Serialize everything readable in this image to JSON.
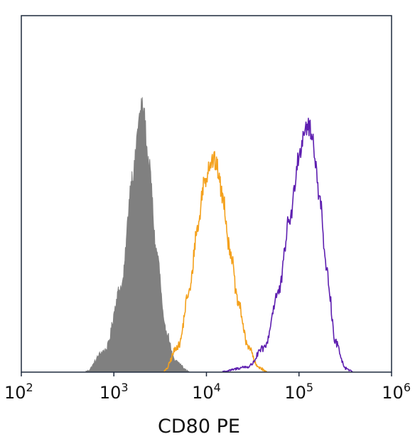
{
  "chart_data": {
    "type": "line",
    "title": "",
    "xlabel": "CD80 PE",
    "ylabel": "",
    "x_scale": "log",
    "xlim": [
      100,
      1000000
    ],
    "x_ticks": [
      {
        "base": "10",
        "exp": "2"
      },
      {
        "base": "10",
        "exp": "3"
      },
      {
        "base": "10",
        "exp": "4"
      },
      {
        "base": "10",
        "exp": "5"
      },
      {
        "base": "10",
        "exp": "6"
      }
    ],
    "ylim": [
      0,
      1.0
    ],
    "grid": false,
    "legend": "none",
    "series": [
      {
        "style": "filled",
        "color": "#808080",
        "x": [
          500,
          800,
          1200,
          1600,
          1900,
          2000,
          2100,
          2400,
          2900,
          3600,
          4600,
          6500
        ],
        "y": [
          0.003,
          0.08,
          0.32,
          0.74,
          0.96,
          1.0,
          0.97,
          0.77,
          0.45,
          0.16,
          0.04,
          0.003
        ]
      },
      {
        "style": "outline",
        "color": "#F4A11D",
        "x": [
          3500,
          5000,
          6500,
          8000,
          9500,
          11000,
          12000,
          13000,
          15000,
          18000,
          22000,
          28000,
          36000,
          45000
        ],
        "y": [
          0.005,
          0.1,
          0.3,
          0.54,
          0.72,
          0.79,
          0.8,
          0.77,
          0.66,
          0.46,
          0.26,
          0.1,
          0.02,
          0.002
        ]
      },
      {
        "style": "outline",
        "color": "#5E1FB0",
        "x": [
          15000,
          28000,
          42000,
          60000,
          80000,
          100000,
          115000,
          125000,
          140000,
          165000,
          200000,
          250000,
          320000,
          380000
        ],
        "y": [
          0.003,
          0.02,
          0.09,
          0.3,
          0.58,
          0.82,
          0.92,
          0.93,
          0.88,
          0.68,
          0.37,
          0.11,
          0.015,
          0.002
        ]
      }
    ]
  }
}
